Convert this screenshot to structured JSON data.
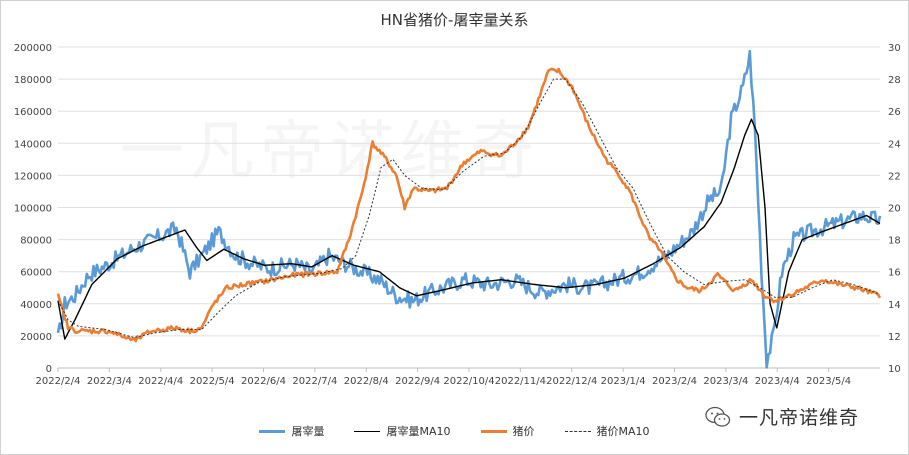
{
  "chart_data": {
    "type": "line",
    "title": "HN省猪价-屠宰量关系",
    "x_tick_labels": [
      "2022/2/4",
      "2022/3/4",
      "2022/4/4",
      "2022/5/4",
      "2022/6/4",
      "2022/7/4",
      "2022/8/4",
      "2022/9/4",
      "2022/10/4",
      "2022/11/4",
      "2022/12/4",
      "2023/1/4",
      "2023/2/4",
      "2023/3/4",
      "2023/4/4",
      "2023/5/4"
    ],
    "y_left": {
      "min": 0,
      "max": 200000,
      "ticks": [
        "0",
        "20000",
        "40000",
        "60000",
        "80000",
        "100000",
        "120000",
        "140000",
        "160000",
        "180000",
        "200000"
      ]
    },
    "y_right": {
      "min": 10,
      "max": 30,
      "ticks": [
        "10",
        "12",
        "14",
        "16",
        "18",
        "20",
        "22",
        "24",
        "26",
        "28",
        "30"
      ]
    },
    "x_range_days": [
      0,
      486
    ],
    "series": [
      {
        "name": "屠宰量",
        "axis": "left",
        "color": "#5b9bd5",
        "style": "solid",
        "noise": 5000,
        "anchors": [
          [
            0,
            18000
          ],
          [
            4,
            40000
          ],
          [
            10,
            45000
          ],
          [
            18,
            58000
          ],
          [
            30,
            65000
          ],
          [
            45,
            75000
          ],
          [
            60,
            82000
          ],
          [
            70,
            87000
          ],
          [
            78,
            60000
          ],
          [
            85,
            70000
          ],
          [
            95,
            85000
          ],
          [
            105,
            70000
          ],
          [
            115,
            65000
          ],
          [
            125,
            62000
          ],
          [
            140,
            65000
          ],
          [
            150,
            60000
          ],
          [
            160,
            70000
          ],
          [
            170,
            65000
          ],
          [
            180,
            60000
          ],
          [
            190,
            55000
          ],
          [
            200,
            45000
          ],
          [
            210,
            42000
          ],
          [
            222,
            48000
          ],
          [
            240,
            55000
          ],
          [
            255,
            52000
          ],
          [
            270,
            55000
          ],
          [
            285,
            47000
          ],
          [
            300,
            52000
          ],
          [
            315,
            50000
          ],
          [
            330,
            55000
          ],
          [
            345,
            60000
          ],
          [
            360,
            70000
          ],
          [
            375,
            85000
          ],
          [
            385,
            105000
          ],
          [
            392,
            110000
          ],
          [
            398,
            155000
          ],
          [
            405,
            175000
          ],
          [
            409,
            195000
          ],
          [
            412,
            150000
          ],
          [
            416,
            60000
          ],
          [
            419,
            5000
          ],
          [
            423,
            20000
          ],
          [
            428,
            60000
          ],
          [
            435,
            80000
          ],
          [
            445,
            85000
          ],
          [
            460,
            90000
          ],
          [
            475,
            95000
          ],
          [
            486,
            92000
          ]
        ]
      },
      {
        "name": "屠宰量MA10",
        "axis": "left",
        "color": "#000000",
        "style": "solid",
        "noise": 0,
        "anchors": [
          [
            0,
            42000
          ],
          [
            4,
            18000
          ],
          [
            10,
            30000
          ],
          [
            20,
            52000
          ],
          [
            35,
            68000
          ],
          [
            50,
            76000
          ],
          [
            65,
            82000
          ],
          [
            75,
            86000
          ],
          [
            82,
            75000
          ],
          [
            88,
            67000
          ],
          [
            98,
            74000
          ],
          [
            110,
            68000
          ],
          [
            122,
            64000
          ],
          [
            138,
            65000
          ],
          [
            150,
            63000
          ],
          [
            162,
            70000
          ],
          [
            175,
            64000
          ],
          [
            190,
            60000
          ],
          [
            202,
            50000
          ],
          [
            212,
            45000
          ],
          [
            225,
            48000
          ],
          [
            245,
            53000
          ],
          [
            262,
            55000
          ],
          [
            282,
            52000
          ],
          [
            300,
            50000
          ],
          [
            318,
            52000
          ],
          [
            335,
            56000
          ],
          [
            352,
            65000
          ],
          [
            368,
            75000
          ],
          [
            382,
            88000
          ],
          [
            392,
            103000
          ],
          [
            400,
            125000
          ],
          [
            406,
            145000
          ],
          [
            410,
            155000
          ],
          [
            414,
            145000
          ],
          [
            418,
            100000
          ],
          [
            421,
            40000
          ],
          [
            425,
            25000
          ],
          [
            432,
            60000
          ],
          [
            440,
            80000
          ],
          [
            452,
            85000
          ],
          [
            465,
            90000
          ],
          [
            478,
            95000
          ],
          [
            486,
            90000
          ]
        ]
      },
      {
        "name": "猪价",
        "axis": "right",
        "color": "#ed7d31",
        "style": "solid",
        "noise": 0.15,
        "anchors": [
          [
            0,
            14.5
          ],
          [
            6,
            12.5
          ],
          [
            12,
            12.3
          ],
          [
            30,
            12.3
          ],
          [
            45,
            11.7
          ],
          [
            55,
            12.3
          ],
          [
            70,
            12.5
          ],
          [
            78,
            12.3
          ],
          [
            85,
            12.5
          ],
          [
            92,
            14
          ],
          [
            100,
            15
          ],
          [
            110,
            15.2
          ],
          [
            122,
            15.4
          ],
          [
            140,
            15.8
          ],
          [
            155,
            15.9
          ],
          [
            165,
            16
          ],
          [
            172,
            18
          ],
          [
            180,
            21
          ],
          [
            186,
            24
          ],
          [
            194,
            23
          ],
          [
            200,
            22
          ],
          [
            205,
            20
          ],
          [
            210,
            21.2
          ],
          [
            220,
            21
          ],
          [
            230,
            21.2
          ],
          [
            240,
            22.8
          ],
          [
            250,
            23.5
          ],
          [
            262,
            23.2
          ],
          [
            270,
            24
          ],
          [
            278,
            25
          ],
          [
            285,
            27
          ],
          [
            290,
            28.5
          ],
          [
            296,
            28.5
          ],
          [
            304,
            27.5
          ],
          [
            314,
            25
          ],
          [
            324,
            23
          ],
          [
            332,
            22
          ],
          [
            338,
            21
          ],
          [
            344,
            19.5
          ],
          [
            350,
            18
          ],
          [
            355,
            17.5
          ],
          [
            360,
            16.5
          ],
          [
            366,
            15.5
          ],
          [
            372,
            15
          ],
          [
            380,
            14.8
          ],
          [
            390,
            15.8
          ],
          [
            400,
            14.8
          ],
          [
            410,
            15.5
          ],
          [
            418,
            14.5
          ],
          [
            424,
            14.2
          ],
          [
            432,
            14.5
          ],
          [
            442,
            15
          ],
          [
            452,
            15.5
          ],
          [
            462,
            15.2
          ],
          [
            472,
            15
          ],
          [
            486,
            14.5
          ]
        ]
      },
      {
        "name": "猪价MA10",
        "axis": "right",
        "color": "#333333",
        "style": "dashed",
        "noise": 0,
        "anchors": [
          [
            0,
            14.2
          ],
          [
            6,
            13
          ],
          [
            12,
            12.6
          ],
          [
            28,
            12.4
          ],
          [
            45,
            11.9
          ],
          [
            58,
            12.2
          ],
          [
            72,
            12.4
          ],
          [
            85,
            12.4
          ],
          [
            95,
            13.5
          ],
          [
            105,
            14.5
          ],
          [
            118,
            15.3
          ],
          [
            135,
            15.7
          ],
          [
            155,
            15.9
          ],
          [
            168,
            16.2
          ],
          [
            176,
            17
          ],
          [
            184,
            19.5
          ],
          [
            191,
            22.5
          ],
          [
            198,
            23
          ],
          [
            205,
            22
          ],
          [
            215,
            21.2
          ],
          [
            228,
            21.1
          ],
          [
            240,
            22.3
          ],
          [
            252,
            23.2
          ],
          [
            264,
            23.4
          ],
          [
            275,
            24.5
          ],
          [
            285,
            26.5
          ],
          [
            293,
            28
          ],
          [
            300,
            28
          ],
          [
            310,
            26.5
          ],
          [
            320,
            24.5
          ],
          [
            330,
            22.5
          ],
          [
            340,
            21.2
          ],
          [
            350,
            19
          ],
          [
            360,
            17
          ],
          [
            370,
            16
          ],
          [
            382,
            15.2
          ],
          [
            395,
            15.4
          ],
          [
            406,
            15.5
          ],
          [
            415,
            15
          ],
          [
            424,
            14.4
          ],
          [
            434,
            14.4
          ],
          [
            446,
            15
          ],
          [
            458,
            15.5
          ],
          [
            470,
            15.2
          ],
          [
            486,
            14.6
          ]
        ]
      }
    ],
    "legend": [
      "屠宰量",
      "屠宰量MA10",
      "猪价",
      "猪价MA10"
    ],
    "legend_position": "bottom"
  },
  "watermark": "一凡帝诺维奇",
  "brand_text": "一凡帝诺维奇",
  "brand_icon": "wechat-icon"
}
